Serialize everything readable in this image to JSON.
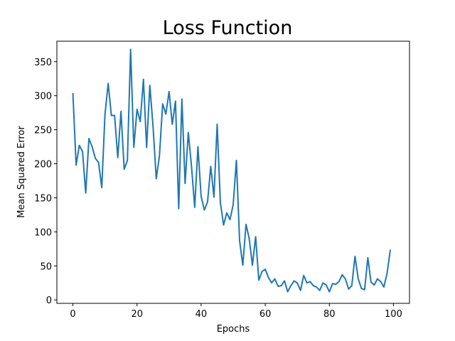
{
  "chart_data": {
    "type": "line",
    "title": "Loss Function",
    "xlabel": "Epochs",
    "ylabel": "Mean Squared Error",
    "xlim": [
      -5,
      105
    ],
    "ylim": [
      -5,
      380
    ],
    "xticks": [
      0,
      20,
      40,
      60,
      80,
      100
    ],
    "yticks": [
      0,
      50,
      100,
      150,
      200,
      250,
      300,
      350
    ],
    "grid": false,
    "legend": null,
    "line_color": "#1f77b4",
    "series": [
      {
        "x": [
          0,
          1,
          2,
          3,
          4,
          5,
          6,
          7,
          8,
          9,
          10,
          11,
          12,
          13,
          14,
          15,
          16,
          17,
          18,
          19,
          20,
          21,
          22,
          23,
          24,
          25,
          26,
          27,
          28,
          29,
          30,
          31,
          32,
          33,
          34,
          35,
          36,
          37,
          38,
          39,
          40,
          41,
          42,
          43,
          44,
          45,
          46,
          47,
          48,
          49,
          50,
          51,
          52,
          53,
          54,
          55,
          56,
          57,
          58,
          59,
          60,
          61,
          62,
          63,
          64,
          65,
          66,
          67,
          68,
          69,
          70,
          71,
          72,
          73,
          74,
          75,
          76,
          77,
          78,
          79,
          80,
          81,
          82,
          83,
          84,
          85,
          86,
          87,
          88,
          89,
          90,
          91,
          92,
          93,
          94,
          95,
          96,
          97,
          98,
          99
        ],
        "values": [
          303,
          198,
          227,
          218,
          157,
          237,
          225,
          208,
          202,
          165,
          272,
          318,
          271,
          271,
          209,
          277,
          192,
          205,
          368,
          224,
          280,
          262,
          324,
          224,
          315,
          255,
          178,
          212,
          288,
          273,
          306,
          258,
          292,
          134,
          295,
          171,
          246,
          196,
          136,
          225,
          152,
          132,
          144,
          196,
          151,
          258,
          143,
          110,
          128,
          118,
          140,
          205,
          87,
          51,
          111,
          90,
          51,
          93,
          29,
          42,
          45,
          33,
          25,
          31,
          20,
          21,
          28,
          12,
          21,
          28,
          25,
          14,
          36,
          25,
          27,
          21,
          19,
          14,
          25,
          22,
          12,
          24,
          23,
          27,
          37,
          31,
          16,
          21,
          64,
          31,
          17,
          15,
          62,
          26,
          22,
          31,
          27,
          19,
          39,
          73
        ]
      }
    ]
  }
}
